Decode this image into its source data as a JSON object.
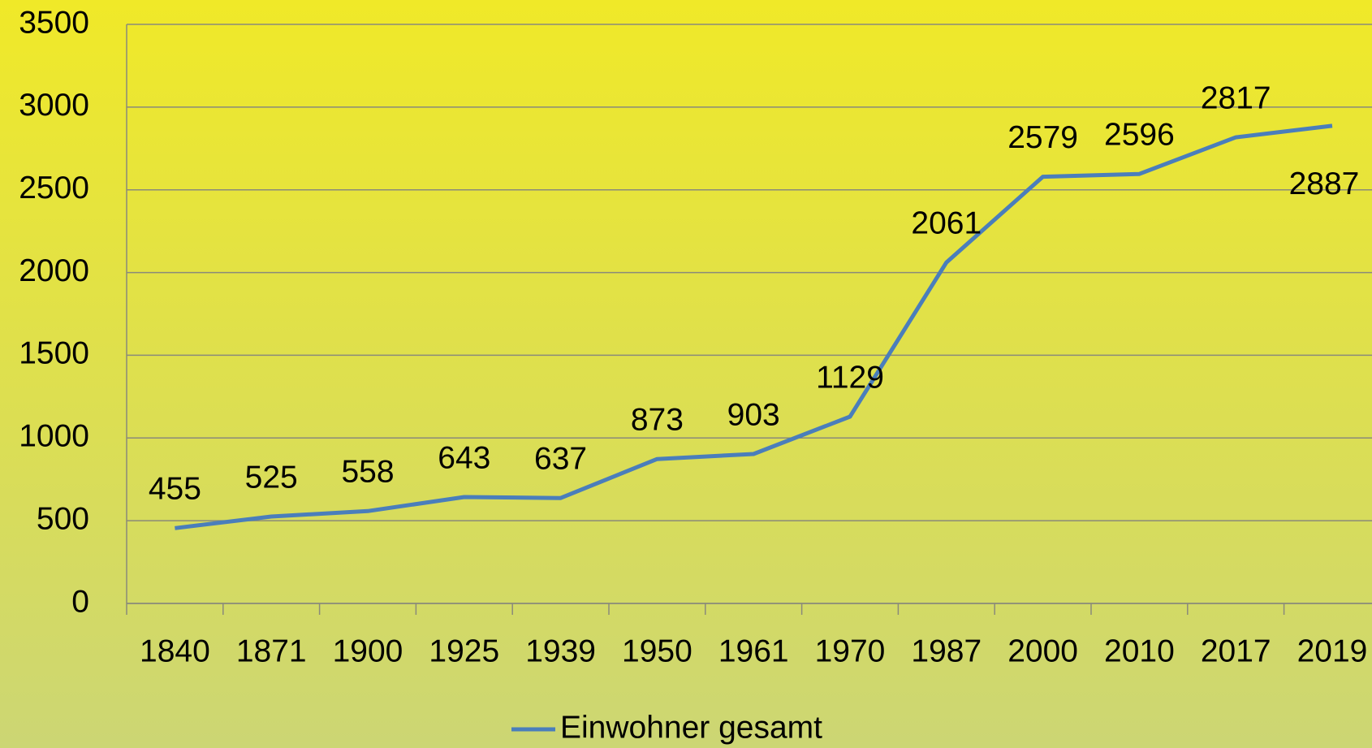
{
  "chart_data": {
    "type": "line",
    "categories": [
      "1840",
      "1871",
      "1900",
      "1925",
      "1939",
      "1950",
      "1961",
      "1970",
      "1987",
      "2000",
      "2010",
      "2017",
      "2019"
    ],
    "series": [
      {
        "name": "Einwohner gesamt",
        "color": "#4a7ebb",
        "values": [
          455,
          525,
          558,
          643,
          637,
          873,
          903,
          1129,
          2061,
          2579,
          2596,
          2817,
          2887
        ]
      }
    ],
    "ylim": [
      0,
      3500
    ],
    "yticks": [
      0,
      500,
      1000,
      1500,
      2000,
      2500,
      3000,
      3500
    ],
    "grid": true,
    "legend": "bottom"
  }
}
